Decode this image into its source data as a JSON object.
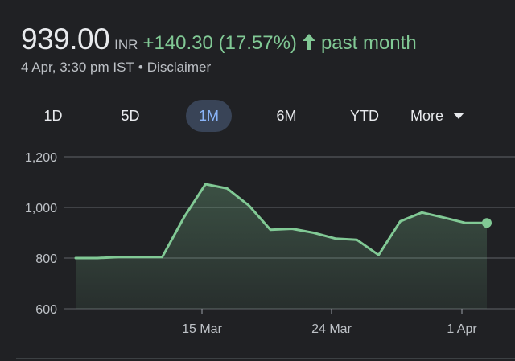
{
  "header": {
    "price": "939.00",
    "currency": "INR",
    "change": "+140.30 (17.57%)",
    "period": "past month",
    "timestamp": "4 Apr, 3:30 pm IST",
    "separator": "•",
    "disclaimer": "Disclaimer",
    "up_color": "#81c995"
  },
  "tabs": [
    {
      "label": "1D",
      "active": false
    },
    {
      "label": "5D",
      "active": false
    },
    {
      "label": "1M",
      "active": true
    },
    {
      "label": "6M",
      "active": false
    },
    {
      "label": "YTD",
      "active": false
    },
    {
      "label": "More",
      "active": false
    }
  ],
  "chart_data": {
    "type": "area",
    "y_ticks": [
      "1,200",
      "1,000",
      "800",
      "600"
    ],
    "ylim": [
      600,
      1200
    ],
    "x_ticks": [
      "15 Mar",
      "24 Mar",
      "1 Apr"
    ],
    "series": [
      {
        "values": [
          800,
          800,
          804,
          804,
          804,
          960,
          1092,
          1075,
          1008,
          912,
          916,
          900,
          877,
          872,
          812,
          945,
          980,
          960,
          939,
          939
        ]
      }
    ],
    "line_color": "#81c995"
  }
}
